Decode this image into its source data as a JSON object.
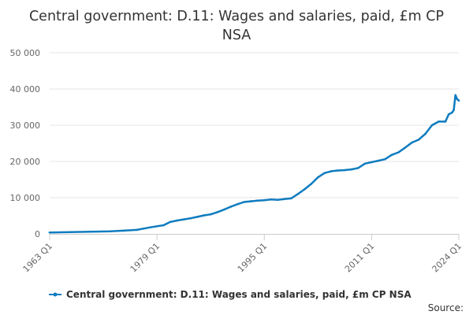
{
  "colors": {
    "series": "#0f7cbf",
    "grid": "#e6e6e6",
    "axis": "#cccccc",
    "text": "#333333",
    "tick_text": "#666666"
  },
  "chart_data": {
    "type": "line",
    "title_lines": [
      "Central government: D.11: Wages and salaries, paid, £m CP",
      "NSA"
    ],
    "xlabel": "",
    "ylabel": "",
    "x_tick_labels": [
      "1963 Q1",
      "1979 Q1",
      "1995 Q1",
      "2011 Q1",
      "2024 Q1"
    ],
    "x_tick_values": [
      1963,
      1979,
      1995,
      2011,
      2024
    ],
    "y_tick_labels": [
      "0",
      "10 000",
      "20 000",
      "30 000",
      "40 000",
      "50 000"
    ],
    "y_tick_values": [
      0,
      10000,
      20000,
      30000,
      40000,
      50000
    ],
    "xlim": [
      1963,
      2024
    ],
    "ylim": [
      0,
      50000
    ],
    "grid": true,
    "legend_position": "bottom",
    "source_label": "Source:",
    "series": [
      {
        "name": "Central government: D.11: Wages and salaries, paid, £m CP NSA",
        "x": [
          1963.0,
          1966.0,
          1969.0,
          1972.0,
          1974.0,
          1976.0,
          1978.0,
          1979.0,
          1980.0,
          1981.0,
          1982.0,
          1983.0,
          1984.0,
          1985.0,
          1986.0,
          1987.0,
          1988.0,
          1989.0,
          1990.0,
          1991.0,
          1992.0,
          1993.0,
          1994.0,
          1995.0,
          1996.0,
          1997.0,
          1998.0,
          1999.0,
          2000.0,
          2001.0,
          2002.0,
          2003.0,
          2004.0,
          2005.0,
          2006.0,
          2007.0,
          2008.0,
          2009.0,
          2010.0,
          2011.0,
          2012.0,
          2013.0,
          2014.0,
          2015.0,
          2016.0,
          2017.0,
          2018.0,
          2019.0,
          2020.0,
          2021.0,
          2022.0,
          2022.5,
          2023.0,
          2023.25,
          2023.5,
          2023.75,
          2024.0
        ],
        "values": [
          400,
          500,
          600,
          700,
          900,
          1100,
          1800,
          2100,
          2400,
          3300,
          3700,
          4000,
          4300,
          4700,
          5100,
          5400,
          6000,
          6700,
          7500,
          8200,
          8800,
          9000,
          9200,
          9300,
          9500,
          9400,
          9600,
          9800,
          11000,
          12300,
          13800,
          15600,
          16800,
          17300,
          17500,
          17600,
          17800,
          18200,
          19400,
          19800,
          20200,
          20600,
          21800,
          22500,
          23800,
          25200,
          26000,
          27600,
          30000,
          31000,
          31000,
          33000,
          33500,
          34200,
          38300,
          37200,
          36800
        ]
      }
    ]
  }
}
